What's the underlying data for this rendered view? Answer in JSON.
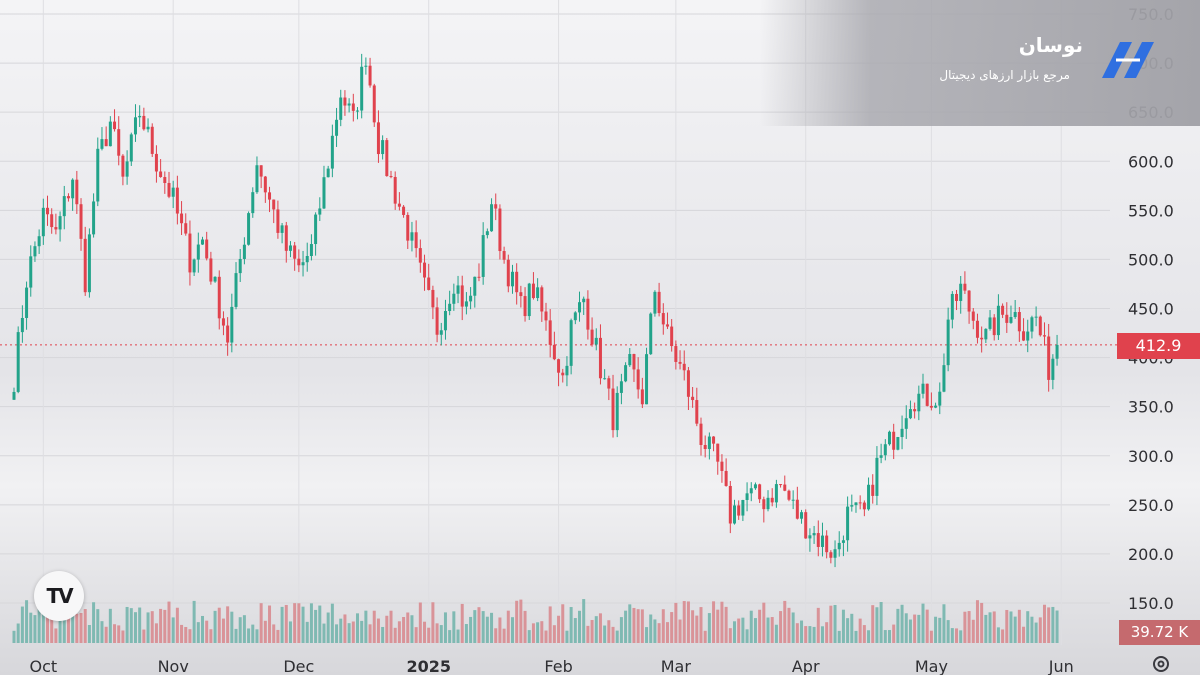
{
  "brand": {
    "name": "نوسان",
    "subtitle": "مرجع بازار ارزهای دیجیتال"
  },
  "tv_logo": "TV",
  "price_tag": "412.9",
  "volume_tag": "39.72 K",
  "icons": {
    "settings": "gear-icon",
    "brand_logo": "brand-logo-icon"
  },
  "colors": {
    "up": "#22a38a",
    "down": "#e0424d",
    "up_volume": "#7fb9b2",
    "down_volume": "#d99398",
    "last_price": "#e0424d"
  },
  "chart_data": {
    "type": "candlestick",
    "y_axis": {
      "ticks": [
        150,
        200,
        250,
        300,
        350,
        400,
        450,
        500,
        550,
        600,
        650,
        700,
        750
      ],
      "tick_labels": [
        "150.0",
        "200.0",
        "250.0",
        "300.0",
        "350.0",
        "400.0",
        "450.0",
        "500.0",
        "550.0",
        "600.0",
        "650.0",
        "700.0",
        "750.0"
      ],
      "ylim": [
        150,
        750
      ],
      "position": "right"
    },
    "x_axis": {
      "range": [
        "2024-09-24",
        "2025-06-05"
      ],
      "ticks": [
        {
          "date": "2024-10-01",
          "label": "Oct",
          "bold": false
        },
        {
          "date": "2024-11-01",
          "label": "Nov",
          "bold": false
        },
        {
          "date": "2024-12-01",
          "label": "Dec",
          "bold": false
        },
        {
          "date": "2025-01-01",
          "label": "2025",
          "bold": true
        },
        {
          "date": "2025-02-01",
          "label": "Feb",
          "bold": false
        },
        {
          "date": "2025-03-01",
          "label": "Mar",
          "bold": false
        },
        {
          "date": "2025-04-01",
          "label": "Apr",
          "bold": false
        },
        {
          "date": "2025-05-01",
          "label": "May",
          "bold": false
        },
        {
          "date": "2025-06-01",
          "label": "Jun",
          "bold": false
        }
      ]
    },
    "last_price": 412.9,
    "grid": true,
    "anchors": [
      [
        "2024-09-24",
        380
      ],
      [
        "2024-09-27",
        480
      ],
      [
        "2024-10-01",
        545
      ],
      [
        "2024-10-04",
        525
      ],
      [
        "2024-10-08",
        585
      ],
      [
        "2024-10-11",
        480
      ],
      [
        "2024-10-14",
        600
      ],
      [
        "2024-10-17",
        640
      ],
      [
        "2024-10-20",
        580
      ],
      [
        "2024-10-24",
        650
      ],
      [
        "2024-10-28",
        600
      ],
      [
        "2024-11-01",
        560
      ],
      [
        "2024-11-05",
        500
      ],
      [
        "2024-11-08",
        520
      ],
      [
        "2024-11-11",
        470
      ],
      [
        "2024-11-14",
        420
      ],
      [
        "2024-11-17",
        500
      ],
      [
        "2024-11-21",
        600
      ],
      [
        "2024-11-24",
        560
      ],
      [
        "2024-11-28",
        510
      ],
      [
        "2024-12-01",
        490
      ],
      [
        "2024-12-04",
        510
      ],
      [
        "2024-12-08",
        600
      ],
      [
        "2024-12-11",
        670
      ],
      [
        "2024-12-14",
        640
      ],
      [
        "2024-12-17",
        710
      ],
      [
        "2024-12-20",
        620
      ],
      [
        "2024-12-23",
        580
      ],
      [
        "2024-12-27",
        530
      ],
      [
        "2024-12-31",
        470
      ],
      [
        "2025-01-03",
        430
      ],
      [
        "2025-01-07",
        480
      ],
      [
        "2025-01-10",
        450
      ],
      [
        "2025-01-13",
        490
      ],
      [
        "2025-01-16",
        560
      ],
      [
        "2025-01-19",
        500
      ],
      [
        "2025-01-23",
        450
      ],
      [
        "2025-01-26",
        470
      ],
      [
        "2025-01-30",
        420
      ],
      [
        "2025-02-02",
        380
      ],
      [
        "2025-02-04",
        430
      ],
      [
        "2025-02-07",
        460
      ],
      [
        "2025-02-11",
        390
      ],
      [
        "2025-02-14",
        340
      ],
      [
        "2025-02-18",
        390
      ],
      [
        "2025-02-21",
        360
      ],
      [
        "2025-02-24",
        470
      ],
      [
        "2025-02-27",
        420
      ],
      [
        "2025-03-03",
        380
      ],
      [
        "2025-03-07",
        320
      ],
      [
        "2025-03-11",
        290
      ],
      [
        "2025-03-14",
        240
      ],
      [
        "2025-03-18",
        260
      ],
      [
        "2025-03-22",
        255
      ],
      [
        "2025-03-26",
        270
      ],
      [
        "2025-03-30",
        240
      ],
      [
        "2025-04-03",
        220
      ],
      [
        "2025-04-08",
        200
      ],
      [
        "2025-04-11",
        240
      ],
      [
        "2025-04-15",
        240
      ],
      [
        "2025-04-18",
        290
      ],
      [
        "2025-04-22",
        320
      ],
      [
        "2025-04-26",
        360
      ],
      [
        "2025-04-30",
        360
      ],
      [
        "2025-05-03",
        360
      ],
      [
        "2025-05-05",
        440
      ],
      [
        "2025-05-08",
        470
      ],
      [
        "2025-05-11",
        440
      ],
      [
        "2025-05-14",
        420
      ],
      [
        "2025-05-17",
        440
      ],
      [
        "2025-05-20",
        450
      ],
      [
        "2025-05-23",
        430
      ],
      [
        "2025-05-26",
        440
      ],
      [
        "2025-05-29",
        390
      ],
      [
        "2025-05-31",
        412.9
      ]
    ]
  }
}
